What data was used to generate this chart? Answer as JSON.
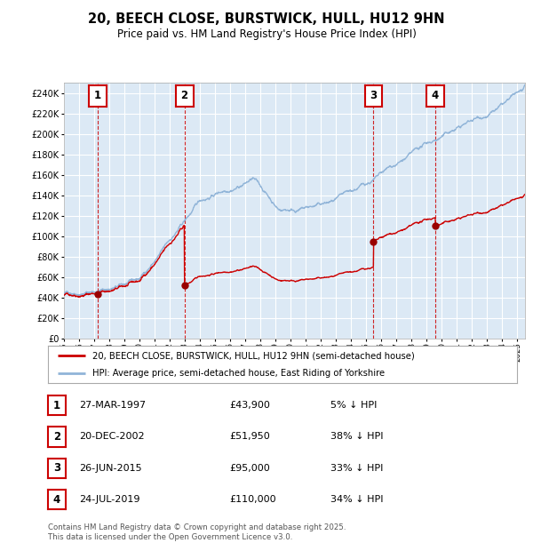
{
  "title": "20, BEECH CLOSE, BURSTWICK, HULL, HU12 9HN",
  "subtitle": "Price paid vs. HM Land Registry's House Price Index (HPI)",
  "ylim": [
    0,
    250000
  ],
  "yticks": [
    0,
    20000,
    40000,
    60000,
    80000,
    100000,
    120000,
    140000,
    160000,
    180000,
    200000,
    220000,
    240000
  ],
  "background_color": "#ffffff",
  "plot_bg_color": "#dce9f5",
  "grid_color": "#ffffff",
  "sale_color": "#cc0000",
  "hpi_color": "#90b4d8",
  "transactions": [
    {
      "num": 1,
      "date": "27-MAR-1997",
      "price": 43900,
      "pct": "5%",
      "year_x": 1997.23
    },
    {
      "num": 2,
      "date": "20-DEC-2002",
      "price": 51950,
      "pct": "38%",
      "year_x": 2002.97
    },
    {
      "num": 3,
      "date": "26-JUN-2015",
      "price": 95000,
      "pct": "33%",
      "year_x": 2015.48
    },
    {
      "num": 4,
      "date": "24-JUL-2019",
      "price": 110000,
      "pct": "34%",
      "year_x": 2019.56
    }
  ],
  "legend_sale_label": "20, BEECH CLOSE, BURSTWICK, HULL, HU12 9HN (semi-detached house)",
  "legend_hpi_label": "HPI: Average price, semi-detached house, East Riding of Yorkshire",
  "footer": "Contains HM Land Registry data © Crown copyright and database right 2025.\nThis data is licensed under the Open Government Licence v3.0.",
  "table_rows": [
    [
      "1",
      "27-MAR-1997",
      "£43,900",
      "5% ↓ HPI"
    ],
    [
      "2",
      "20-DEC-2002",
      "£51,950",
      "38% ↓ HPI"
    ],
    [
      "3",
      "26-JUN-2015",
      "£95,000",
      "33% ↓ HPI"
    ],
    [
      "4",
      "24-JUL-2019",
      "£110,000",
      "34% ↓ HPI"
    ]
  ],
  "xmin": 1995,
  "xmax": 2025.5
}
